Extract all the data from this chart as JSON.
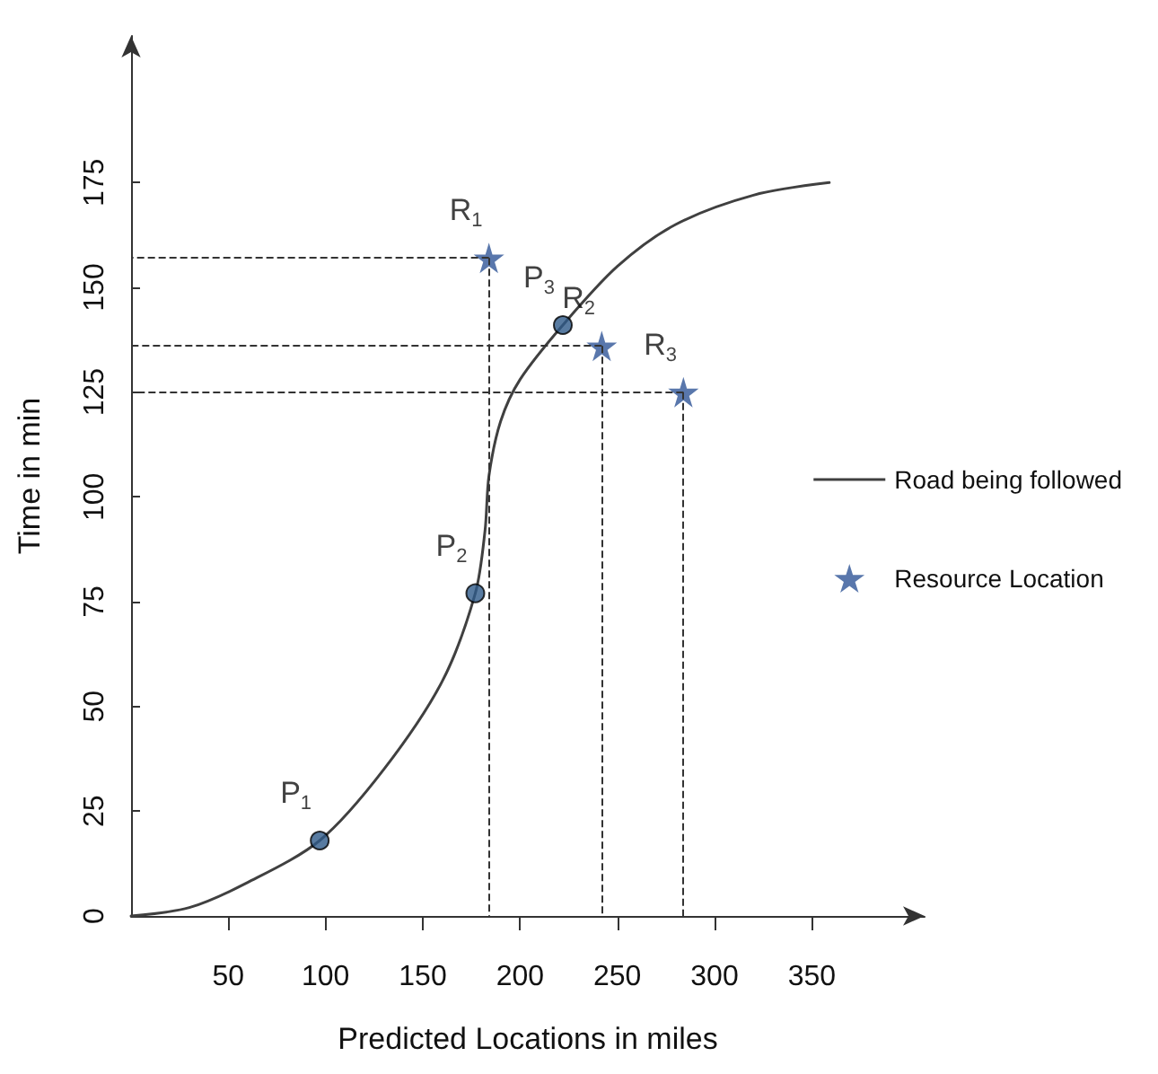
{
  "chart_data": {
    "type": "line",
    "xlabel": "Predicted Locations in miles",
    "ylabel": "Time in min",
    "xlim": [
      0,
      408
    ],
    "xticks": [
      50,
      100,
      150,
      200,
      250,
      300,
      350
    ],
    "ylim": [
      0,
      210
    ],
    "yticks": [
      0,
      25,
      50,
      75,
      100,
      125,
      150,
      175
    ],
    "grid": false,
    "legend": "right",
    "series": [
      {
        "name": "Road being followed",
        "color": "#404040",
        "marker": "none",
        "line_style": "solid",
        "x": [
          0,
          30,
          60,
          97,
          130,
          160,
          177,
          182,
          184,
          190,
          200,
          222,
          250,
          280,
          320,
          359
        ],
        "values": [
          0,
          2,
          8,
          18,
          35,
          56,
          77,
          92,
          105,
          118,
          128,
          141,
          155,
          165,
          172,
          175
        ]
      },
      {
        "type": "scatter",
        "color": "#2e5a8a",
        "marker": "circle",
        "x": [
          97,
          177,
          222
        ],
        "values": [
          18,
          77,
          141
        ]
      },
      {
        "name": "Resource Location",
        "type": "scatter",
        "color": "#2f5597",
        "marker": "star",
        "x": [
          184,
          242,
          284
        ],
        "values": [
          157,
          136,
          125
        ]
      }
    ],
    "annotations": [
      {
        "text": "P$_{1}$",
        "x": 97,
        "y": 18
      },
      {
        "text": "P$_{2}$",
        "x": 177,
        "y": 77
      },
      {
        "text": "P$_{3}$",
        "x": 222,
        "y": 141
      },
      {
        "text": "R$_{1}$",
        "x": 184,
        "y": 157
      },
      {
        "text": "R$_{2}$",
        "x": 242,
        "y": 136
      },
      {
        "text": "R$_{3}$",
        "x": 284,
        "y": 125
      }
    ]
  }
}
